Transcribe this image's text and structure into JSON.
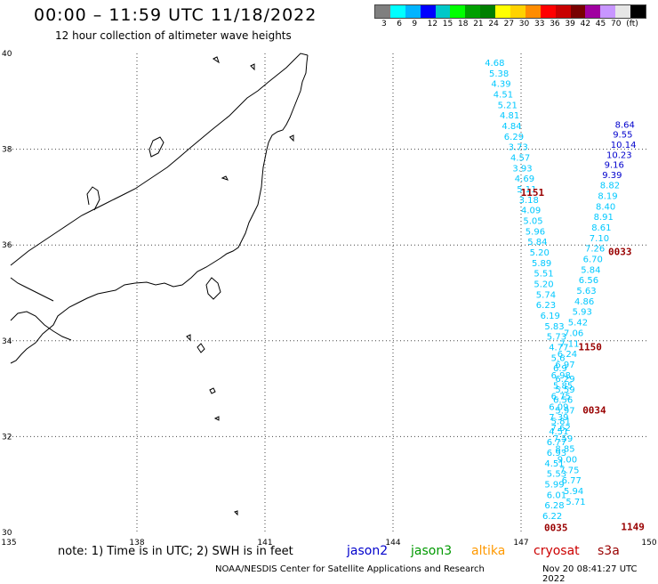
{
  "header": {
    "title": "00:00 – 11:59 UTC 11/18/2022",
    "subtitle": "12 hour collection of altimeter wave heights"
  },
  "legend": {
    "colors": [
      "#7f7f7f",
      "#00ffff",
      "#00b4ff",
      "#0000ff",
      "#00c8c8",
      "#00ff00",
      "#00a000",
      "#008000",
      "#ffff00",
      "#ffd200",
      "#ff8c00",
      "#ff0000",
      "#c80000",
      "#780000",
      "#a000a0",
      "#c896ff",
      "#e6e6e6",
      "#000000"
    ],
    "labels": [
      "3",
      "6",
      "9",
      "12",
      "15",
      "18",
      "21",
      "24",
      "27",
      "30",
      "33",
      "36",
      "39",
      "42",
      "45",
      "70",
      "(ft)"
    ]
  },
  "map": {
    "lon_ticks": [
      "135",
      "138",
      "141",
      "144",
      "147",
      "150"
    ],
    "lat_ticks": [
      "40",
      "38",
      "36",
      "34",
      "32",
      "30"
    ],
    "lon_range": [
      135,
      150
    ],
    "lat_range": [
      30,
      40
    ]
  },
  "tracks": [
    {
      "name": "track-west-cyan",
      "color": "#00c8ff",
      "label": "",
      "points": [
        [
          "4.68",
          146.15,
          39.74
        ],
        [
          "5.38",
          146.25,
          39.52
        ],
        [
          "4.39",
          146.3,
          39.3
        ],
        [
          "4.51",
          146.35,
          39.08
        ],
        [
          "5.21",
          146.45,
          38.86
        ],
        [
          "4.81",
          146.5,
          38.64
        ],
        [
          "4.84",
          146.55,
          38.42
        ],
        [
          "6.29",
          146.6,
          38.2
        ],
        [
          "3.73",
          146.7,
          37.98
        ],
        [
          "4.57",
          146.75,
          37.76
        ],
        [
          "3.93",
          146.8,
          37.54
        ],
        [
          "4.69",
          146.85,
          37.32
        ],
        [
          "5.11",
          146.9,
          37.1
        ],
        [
          "3.18",
          146.95,
          36.88
        ],
        [
          "4.09",
          147.0,
          36.66
        ],
        [
          "5.05",
          147.05,
          36.44
        ],
        [
          "5.96",
          147.1,
          36.22
        ],
        [
          "5.84",
          147.15,
          36.0
        ],
        [
          "5.20",
          147.2,
          35.78
        ],
        [
          "5.89",
          147.25,
          35.56
        ],
        [
          "5.51",
          147.3,
          35.34
        ],
        [
          "5.20",
          147.3,
          35.12
        ],
        [
          "5.74",
          147.35,
          34.9
        ],
        [
          "6.23",
          147.35,
          34.68
        ],
        [
          "6.19",
          147.45,
          34.46
        ],
        [
          "5.83",
          147.55,
          34.24
        ],
        [
          "5.73",
          147.6,
          34.02
        ],
        [
          "4.77",
          147.65,
          33.8
        ],
        [
          "5.6",
          147.7,
          33.58
        ],
        [
          "6.9",
          147.75,
          33.36
        ],
        [
          "6.29",
          147.8,
          33.14
        ],
        [
          "5.59",
          147.8,
          32.92
        ],
        [
          "6.56",
          147.75,
          32.7
        ],
        [
          "5.97",
          147.8,
          32.48
        ],
        [
          "5.81",
          147.7,
          32.26
        ],
        [
          "4.51",
          147.65,
          32.04
        ],
        [
          "6.77",
          147.6,
          31.82
        ],
        [
          "6.93",
          147.6,
          31.6
        ],
        [
          "4.51",
          147.55,
          31.38
        ],
        [
          "5.53",
          147.6,
          31.16
        ],
        [
          "5.99",
          147.55,
          30.94
        ],
        [
          "6.01",
          147.6,
          30.72
        ],
        [
          "6.28",
          147.55,
          30.5
        ],
        [
          "6.22",
          147.5,
          30.28
        ]
      ]
    },
    {
      "name": "track-east-jason2",
      "color": "#0000cc",
      "label": "",
      "points": [
        [
          "8.64",
          149.2,
          38.45
        ],
        [
          "9.55",
          149.15,
          38.24
        ],
        [
          "10.14",
          149.1,
          38.03
        ],
        [
          "10.23",
          149.0,
          37.82
        ],
        [
          "9.16",
          148.95,
          37.61
        ],
        [
          "9.39",
          148.9,
          37.4
        ]
      ]
    },
    {
      "name": "track-east-cyan",
      "color": "#00c8ff",
      "label": "",
      "points": [
        [
          "8.82",
          148.85,
          37.18
        ],
        [
          "8.19",
          148.8,
          36.96
        ],
        [
          "8.40",
          148.75,
          36.74
        ],
        [
          "8.91",
          148.7,
          36.52
        ],
        [
          "8.61",
          148.65,
          36.3
        ],
        [
          "7.10",
          148.6,
          36.08
        ],
        [
          "7.26",
          148.5,
          35.86
        ],
        [
          "6.70",
          148.45,
          35.64
        ],
        [
          "5.84",
          148.4,
          35.42
        ],
        [
          "6.56",
          148.35,
          35.2
        ],
        [
          "5.63",
          148.3,
          34.98
        ],
        [
          "4.86",
          148.25,
          34.76
        ],
        [
          "5.93",
          148.2,
          34.54
        ],
        [
          "5.42",
          148.1,
          34.32
        ],
        [
          "7.06",
          148.0,
          34.1
        ],
        [
          "7.11",
          147.9,
          33.88
        ],
        [
          "6.24",
          147.85,
          33.66
        ],
        [
          "6.97",
          147.8,
          33.44
        ],
        [
          "6.98",
          147.7,
          33.22
        ],
        [
          "5.85",
          147.75,
          33.0
        ],
        [
          "6.75",
          147.7,
          32.78
        ],
        [
          "6.09",
          147.65,
          32.56
        ],
        [
          "7.39",
          147.65,
          32.34
        ],
        [
          "7.62",
          147.7,
          32.12
        ],
        [
          "7.59",
          147.75,
          31.9
        ],
        [
          "8.85",
          147.8,
          31.68
        ],
        [
          "9.00",
          147.85,
          31.46
        ],
        [
          "7.75",
          147.9,
          31.24
        ],
        [
          "6.77",
          147.95,
          31.02
        ],
        [
          "5.94",
          148.0,
          30.8
        ],
        [
          "5.71",
          148.05,
          30.58
        ]
      ]
    }
  ],
  "pass_times": [
    {
      "text": "1151",
      "lon": 146.95,
      "lat": 37.1
    },
    {
      "text": "0033",
      "lon": 149.0,
      "lat": 35.86
    },
    {
      "text": "1150",
      "lon": 148.3,
      "lat": 33.88
    },
    {
      "text": "0034",
      "lon": 148.4,
      "lat": 32.56
    },
    {
      "text": "0035",
      "lon": 147.5,
      "lat": 30.1
    },
    {
      "text": "1149",
      "lon": 149.3,
      "lat": 30.12
    }
  ],
  "footer": {
    "note": "note:  1) Time is in UTC;  2) SWH is in feet",
    "sats": [
      {
        "name": "jason2",
        "color": "#0000cc"
      },
      {
        "name": "jason3",
        "color": "#009900"
      },
      {
        "name": "altika",
        "color": "#ff9900"
      },
      {
        "name": "cryosat",
        "color": "#cc0000"
      },
      {
        "name": "s3a",
        "color": "#990000"
      }
    ],
    "credit": "NOAA/NESDIS Center for Satellite Applications and Research",
    "timestamp": "Nov 20 08:41:27 UTC 2022"
  }
}
